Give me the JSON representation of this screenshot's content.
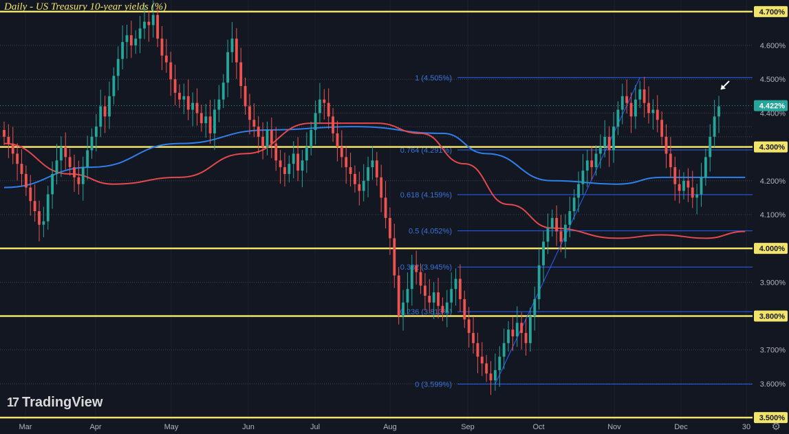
{
  "chart_data": {
    "type": "candlestick",
    "title": "Daily - US Treasury 10-year yields (%)",
    "x_ticks": [
      "Mar",
      "Apr",
      "May",
      "Jun",
      "Jul",
      "Aug",
      "Sep",
      "Oct",
      "Nov",
      "Dec",
      "30"
    ],
    "y_ticks": [
      "4.600%",
      "4.500%",
      "4.400%",
      "4.200%",
      "4.100%",
      "3.900%",
      "3.700%",
      "3.600%"
    ],
    "ylim": [
      3.49,
      4.72
    ],
    "horizontal_levels": [
      {
        "value": 4.7,
        "label": "4.700%"
      },
      {
        "value": 4.3,
        "label": "4.300%"
      },
      {
        "value": 4.0,
        "label": "4.000%"
      },
      {
        "value": 3.8,
        "label": "3.800%"
      },
      {
        "value": 3.5,
        "label": "3.500%"
      }
    ],
    "fibonacci_levels": [
      {
        "ratio": "1",
        "value": 4.505,
        "label": "1 (4.505%)"
      },
      {
        "ratio": "0.764",
        "value": 4.291,
        "label": "0.764 (4.291%)"
      },
      {
        "ratio": "0.618",
        "value": 4.159,
        "label": "0.618 (4.159%)"
      },
      {
        "ratio": "0.5",
        "value": 4.052,
        "label": "0.5 (4.052%)"
      },
      {
        "ratio": "0.382",
        "value": 3.945,
        "label": "0.382 (3.945%)"
      },
      {
        "ratio": "0.236",
        "value": 3.813,
        "label": "0.236 (3.813%)"
      },
      {
        "ratio": "0",
        "value": 3.599,
        "label": "0 (3.599%)"
      }
    ],
    "last_price": {
      "value": 4.422,
      "label": "4.422%"
    },
    "closes": [
      4.33,
      4.31,
      4.28,
      4.25,
      4.22,
      4.18,
      4.14,
      4.11,
      4.07,
      4.08,
      4.16,
      4.22,
      4.26,
      4.3,
      4.27,
      4.24,
      4.21,
      4.19,
      4.24,
      4.29,
      4.33,
      4.36,
      4.42,
      4.39,
      4.45,
      4.51,
      4.56,
      4.61,
      4.63,
      4.6,
      4.62,
      4.65,
      4.67,
      4.66,
      4.69,
      4.62,
      4.57,
      4.55,
      4.5,
      4.46,
      4.44,
      4.45,
      4.41,
      4.43,
      4.4,
      4.37,
      4.39,
      4.34,
      4.41,
      4.44,
      4.49,
      4.58,
      4.62,
      4.55,
      4.48,
      4.42,
      4.38,
      4.36,
      4.33,
      4.3,
      4.35,
      4.31,
      4.26,
      4.24,
      4.22,
      4.25,
      4.28,
      4.23,
      4.26,
      4.3,
      4.35,
      4.4,
      4.44,
      4.43,
      4.39,
      4.34,
      4.3,
      4.27,
      4.24,
      4.22,
      4.19,
      4.17,
      4.2,
      4.24,
      4.26,
      4.21,
      4.15,
      4.09,
      4.03,
      3.92,
      3.8,
      3.84,
      3.88,
      3.95,
      3.93,
      3.89,
      3.86,
      3.84,
      3.87,
      3.83,
      3.81,
      3.84,
      3.88,
      3.91,
      3.85,
      3.79,
      3.75,
      3.72,
      3.68,
      3.66,
      3.63,
      3.61,
      3.64,
      3.68,
      3.72,
      3.76,
      3.74,
      3.78,
      3.75,
      3.72,
      3.8,
      3.85,
      3.95,
      4.02,
      4.06,
      4.09,
      4.05,
      4.02,
      4.07,
      4.11,
      4.15,
      4.19,
      4.23,
      4.26,
      4.24,
      4.28,
      4.3,
      4.33,
      4.29,
      4.36,
      4.41,
      4.45,
      4.43,
      4.39,
      4.44,
      4.47,
      4.43,
      4.4,
      4.41,
      4.38,
      4.33,
      4.28,
      4.24,
      4.19,
      4.17,
      4.2,
      4.18,
      4.15,
      4.16,
      4.21,
      4.27,
      4.33,
      4.39,
      4.42
    ],
    "series": [
      {
        "name": "",
        "type": "moving-average",
        "color": "#2f80ed",
        "x_index": [
          0,
          20,
          40,
          60,
          80,
          100,
          110,
          125,
          140,
          150,
          160,
          169
        ],
        "values": [
          4.18,
          4.24,
          4.31,
          4.35,
          4.36,
          4.34,
          4.28,
          4.2,
          4.19,
          4.21,
          4.21,
          4.21
        ]
      },
      {
        "name": "",
        "type": "moving-average",
        "color": "#e5484d",
        "x_index": [
          0,
          15,
          25,
          40,
          55,
          70,
          85,
          95,
          105,
          115,
          125,
          140,
          150,
          160,
          169
        ],
        "values": [
          4.31,
          4.22,
          4.19,
          4.21,
          4.28,
          4.37,
          4.37,
          4.34,
          4.25,
          4.13,
          4.06,
          4.03,
          4.04,
          4.03,
          4.05
        ]
      }
    ],
    "trendline": {
      "from": {
        "index": 112,
        "value": 3.599
      },
      "to": {
        "index": 145,
        "value": 4.505
      }
    },
    "annotation": "arrow pointing at last candle",
    "colors": {
      "up": "#26a69a",
      "down": "#ef5350",
      "level": "#f2e36b",
      "fib": "#2962ff"
    }
  },
  "branding": {
    "logo_text": "TradingView",
    "logo_mark": "17"
  },
  "ui": {
    "settings_icon": "gear-icon"
  }
}
